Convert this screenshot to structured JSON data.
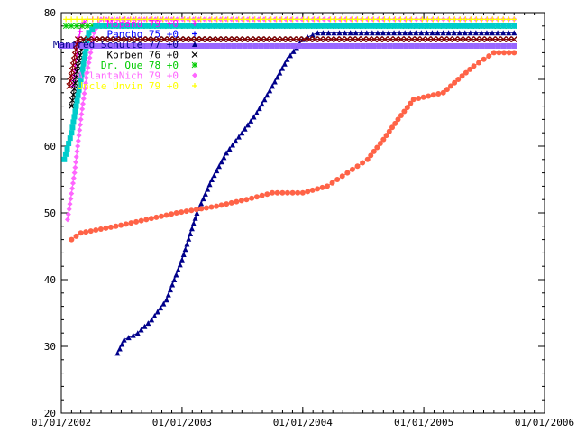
{
  "chart_data": {
    "type": "line",
    "title": "",
    "xlabel": "",
    "ylabel": "",
    "x_axis": "date",
    "xlim": [
      "2002-01-01",
      "2006-01-01"
    ],
    "ylim": [
      20,
      80
    ],
    "x_ticks": [
      "01/01/2002",
      "01/01/2003",
      "01/01/2004",
      "01/01/2005",
      "01/01/2006"
    ],
    "y_ticks": [
      20,
      30,
      40,
      50,
      60,
      70,
      80
    ],
    "grid": false,
    "legend_position": "top-left",
    "series": [
      {
        "name": "Mopanu 79 +0",
        "color": "#ff00ff",
        "marker": "cross",
        "points": [
          [
            "2002-02-05",
            69
          ],
          [
            "2002-02-15",
            73
          ],
          [
            "2002-03-01",
            78
          ],
          [
            "2002-03-20",
            79
          ],
          [
            "2005-10-01",
            79
          ]
        ]
      },
      {
        "name": "Pancho 75 +0",
        "color": "#0000ff",
        "marker": "plus",
        "points": [
          [
            "2002-01-25",
            75
          ],
          [
            "2005-10-01",
            75
          ]
        ]
      },
      {
        "name": "Manfred Schulte 77 +0",
        "color": "#00008b",
        "marker": "triangle",
        "points": [
          [
            "2002-06-20",
            29
          ],
          [
            "2002-07-10",
            31
          ],
          [
            "2002-08-20",
            32
          ],
          [
            "2002-10-01",
            34
          ],
          [
            "2002-11-15",
            37
          ],
          [
            "2003-01-01",
            43
          ],
          [
            "2003-02-15",
            50
          ],
          [
            "2003-04-01",
            55
          ],
          [
            "2003-05-15",
            59
          ],
          [
            "2003-07-01",
            62
          ],
          [
            "2003-08-15",
            65
          ],
          [
            "2003-10-01",
            69
          ],
          [
            "2003-11-15",
            73
          ],
          [
            "2004-01-01",
            76
          ],
          [
            "2004-02-15",
            77
          ],
          [
            "2005-10-01",
            77
          ]
        ]
      },
      {
        "name": "Korben 76 +0",
        "color": "#000000",
        "marker": "x",
        "points": [
          [
            "2002-02-01",
            66
          ],
          [
            "2002-02-20",
            72
          ],
          [
            "2002-03-10",
            76
          ],
          [
            "2005-10-01",
            76
          ]
        ]
      },
      {
        "name": "Dr. Que 78 +0",
        "color": "#00cc00",
        "marker": "star",
        "points": [
          [
            "2002-01-15",
            78
          ],
          [
            "2005-10-01",
            78
          ]
        ]
      },
      {
        "name": "AtlantaNich 79 +0",
        "color": "#ff66ff",
        "marker": "diamond",
        "points": [
          [
            "2002-01-20",
            49
          ],
          [
            "2002-02-10",
            56
          ],
          [
            "2002-03-01",
            64
          ],
          [
            "2002-03-20",
            71
          ],
          [
            "2002-04-10",
            77
          ],
          [
            "2002-05-01",
            79
          ],
          [
            "2005-10-01",
            79
          ]
        ]
      },
      {
        "name": "Uncle Unvin 79 +0",
        "color": "#ffff00",
        "marker": "plus",
        "points": [
          [
            "2002-01-15",
            79
          ],
          [
            "2005-10-01",
            79
          ]
        ]
      },
      {
        "name": "",
        "color": "#ff6347",
        "marker": "circle",
        "points": [
          [
            "2002-02-01",
            46
          ],
          [
            "2002-03-01",
            47
          ],
          [
            "2002-06-15",
            48
          ],
          [
            "2002-09-15",
            49
          ],
          [
            "2002-12-15",
            50
          ],
          [
            "2003-04-15",
            51
          ],
          [
            "2003-07-15",
            52
          ],
          [
            "2003-10-01",
            53
          ],
          [
            "2004-01-01",
            53
          ],
          [
            "2004-03-15",
            54
          ],
          [
            "2004-05-15",
            56
          ],
          [
            "2004-07-15",
            58
          ],
          [
            "2004-09-01",
            61
          ],
          [
            "2004-10-15",
            64
          ],
          [
            "2004-12-01",
            67
          ],
          [
            "2005-03-01",
            68
          ],
          [
            "2005-04-15",
            70
          ],
          [
            "2005-06-01",
            72
          ],
          [
            "2005-08-01",
            74
          ],
          [
            "2005-10-01",
            74
          ]
        ]
      },
      {
        "name": "",
        "color": "#00cccc",
        "marker": "square",
        "points": [
          [
            "2002-01-10",
            58
          ],
          [
            "2002-02-01",
            62
          ],
          [
            "2002-03-01",
            70
          ],
          [
            "2002-03-25",
            77
          ],
          [
            "2002-04-15",
            78
          ],
          [
            "2005-10-01",
            78
          ]
        ]
      },
      {
        "name": "",
        "color": "#9966ff",
        "marker": "square",
        "points": [
          [
            "2002-01-01",
            75
          ],
          [
            "2005-10-01",
            75
          ]
        ]
      },
      {
        "name": "",
        "color": "#8b0000",
        "marker": "x",
        "points": [
          [
            "2002-01-25",
            69
          ],
          [
            "2002-02-20",
            76
          ],
          [
            "2005-10-01",
            76
          ]
        ]
      }
    ]
  }
}
